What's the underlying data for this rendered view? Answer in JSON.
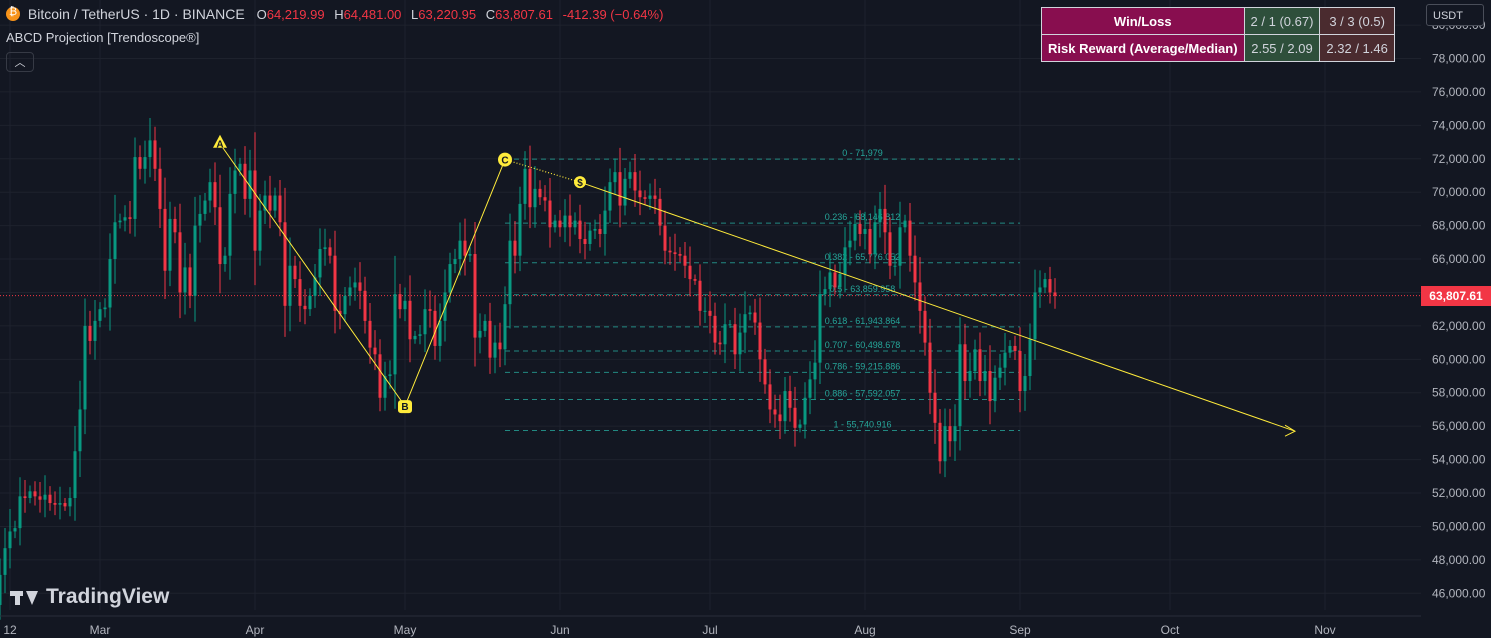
{
  "header": {
    "title": "Bitcoin / TetherUS · 1D · BINANCE",
    "ohlc": [
      {
        "k": "O",
        "v": "64,219.99"
      },
      {
        "k": "H",
        "v": "64,481.00"
      },
      {
        "k": "L",
        "v": "63,220.95"
      },
      {
        "k": "C",
        "v": "63,807.61"
      }
    ],
    "change": "-412.39 (−0.64%)"
  },
  "indicator": {
    "name": "ABCD Projection [Trendoscope®]",
    "collapse_icon": "chevron-up-icon"
  },
  "stats_table": {
    "rows": [
      {
        "label": "Win/Loss",
        "a": "2 / 1 (0.67)",
        "b": "3 / 3 (0.5)"
      },
      {
        "label": "Risk Reward (Average/Median)",
        "a": "2.55 / 2.09",
        "b": "2.32 / 1.46"
      }
    ]
  },
  "currency_button": "USDT",
  "last_price": "63,807.61",
  "watermark": "TradingView",
  "colors": {
    "background": "#131722",
    "up": "#089981",
    "down": "#f23645",
    "pattern": "#ffeb3b",
    "fib": "#26a69a",
    "table_label": "#880e4f"
  },
  "chart_data": {
    "type": "candlestick",
    "ylim": [
      45000,
      81500
    ],
    "y_ticks": [
      46000,
      48000,
      50000,
      52000,
      54000,
      56000,
      58000,
      60000,
      62000,
      64000,
      66000,
      68000,
      70000,
      72000,
      74000,
      76000,
      78000,
      80000
    ],
    "y_tick_labels": [
      "46,000.00",
      "48,000.00",
      "50,000.00",
      "52,000.00",
      "54,000.00",
      "56,000.00",
      "58,000.00",
      "60,000.00",
      "62,000.00",
      "64,000.00",
      "66,000.00",
      "68,000.00",
      "70,000.00",
      "72,000.00",
      "74,000.00",
      "76,000.00",
      "78,000.00",
      "80,000.00"
    ],
    "x_ticks": [
      {
        "date": "2024-02-12",
        "label": "12"
      },
      {
        "date": "2024-03-01",
        "label": "Mar"
      },
      {
        "date": "2024-04-01",
        "label": "Apr"
      },
      {
        "date": "2024-05-01",
        "label": "May"
      },
      {
        "date": "2024-06-01",
        "label": "Jun"
      },
      {
        "date": "2024-07-01",
        "label": "Jul"
      },
      {
        "date": "2024-08-01",
        "label": "Aug"
      },
      {
        "date": "2024-09-01",
        "label": "Sep"
      },
      {
        "date": "2024-10-01",
        "label": "Oct"
      },
      {
        "date": "2024-11-01",
        "label": "Nov"
      }
    ],
    "last_price": 63807.61,
    "pattern_points": [
      {
        "label": "A",
        "date": "2024-03-25",
        "price": 72900
      },
      {
        "label": "B",
        "date": "2024-05-01",
        "price": 57200
      },
      {
        "label": "C",
        "date": "2024-05-21",
        "price": 71950
      },
      {
        "label": "$",
        "date": "2024-06-05",
        "price": 70600
      }
    ],
    "projection_end": {
      "date": "2024-10-26",
      "price": 55700
    },
    "fib_levels": [
      {
        "ratio": 0,
        "label": "0 - 71,979",
        "price": 71979
      },
      {
        "ratio": 0.236,
        "label": "0.236 - 68,146.812",
        "price": 68146.812
      },
      {
        "ratio": 0.382,
        "label": "0.382 - 65,776.052",
        "price": 65776.052
      },
      {
        "ratio": 0.5,
        "label": "0.5 - 63,859.958",
        "price": 63859.958
      },
      {
        "ratio": 0.618,
        "label": "0.618 - 61,943.864",
        "price": 61943.864
      },
      {
        "ratio": 0.707,
        "label": "0.707 - 60,498.678",
        "price": 60498.678
      },
      {
        "ratio": 0.786,
        "label": "0.786 - 59,215.886",
        "price": 59215.886
      },
      {
        "ratio": 0.886,
        "label": "0.886 - 57,592.057",
        "price": 57592.057
      },
      {
        "ratio": 1,
        "label": "1 - 55,740.916",
        "price": 55740.916
      }
    ],
    "fib_start_date": "2024-05-21",
    "fib_end_date": "2024-08-24",
    "candles_start_date": "2024-02-09",
    "candles_close": [
      45300,
      47100,
      48700,
      49700,
      49900,
      51800,
      51700,
      52100,
      51800,
      51600,
      51900,
      51400,
      51300,
      51400,
      51200,
      51700,
      54500,
      57000,
      62000,
      61100,
      62300,
      63000,
      63100,
      66000,
      68200,
      68300,
      68500,
      68400,
      72100,
      71400,
      72100,
      73100,
      71400,
      69000,
      65300,
      68400,
      67600,
      64000,
      65500,
      63800,
      68000,
      68700,
      69500,
      70600,
      69100,
      65700,
      66200,
      69900,
      71300,
      71700,
      69600,
      71300,
      66500,
      68900,
      69800,
      68900,
      69800,
      68200,
      63200,
      65600,
      64800,
      63200,
      63000,
      63800,
      64900,
      66600,
      66700,
      66200,
      62900,
      62700,
      63800,
      64300,
      64600,
      64100,
      62300,
      60700,
      60300,
      57700,
      59000,
      59100,
      63900,
      63000,
      63500,
      61200,
      61400,
      61500,
      63000,
      62900,
      60800,
      62300,
      64000,
      65700,
      66000,
      67100,
      66200,
      66300,
      61300,
      61700,
      62300,
      60100,
      61000,
      60600,
      63300,
      67100,
      66200,
      69300,
      71400,
      69100,
      70200,
      69700,
      69500,
      67900,
      68300,
      67900,
      68600,
      67900,
      68300,
      67200,
      66900,
      67700,
      67800,
      67500,
      68900,
      70600,
      71200,
      69200,
      70800,
      71200,
      70100,
      69700,
      69600,
      69800,
      69600,
      68000,
      66500,
      66400,
      66300,
      66200,
      65600,
      64800,
      64700,
      62900,
      62900,
      62600,
      61000,
      60900,
      62100,
      62100,
      60300,
      61600,
      62700,
      62800,
      62200,
      60000,
      58500,
      57000,
      56700,
      56300,
      58100,
      57100,
      55900,
      56100,
      57700,
      58800,
      59800,
      63900,
      64200,
      65200,
      64300,
      65100,
      66700,
      67100,
      68100,
      67500,
      67800,
      66300,
      68200,
      69000,
      67600,
      65600,
      65600,
      67900,
      68300,
      66200,
      64600,
      62900,
      61000,
      58000,
      56200,
      53900,
      56000,
      55100,
      56000,
      60900,
      58700,
      59300,
      60600,
      58700,
      59300,
      57500,
      58900,
      59500,
      60400,
      60800,
      60500,
      58100,
      59000,
      61200,
      64000,
      64300,
      64800,
      64000,
      63800
    ]
  }
}
